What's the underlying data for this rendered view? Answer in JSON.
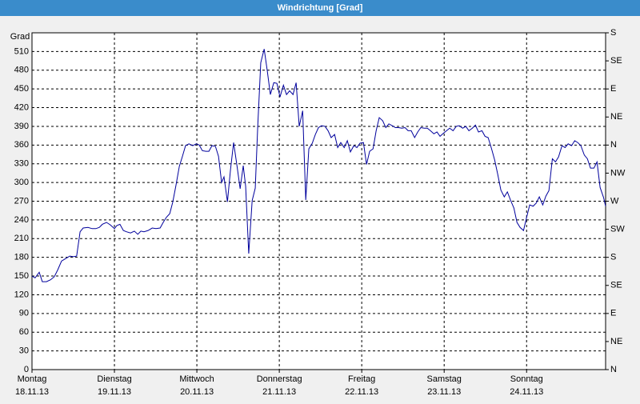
{
  "chart_data": {
    "type": "line",
    "title": "Windrichtung [Grad]",
    "y_label": "Grad",
    "xlim": [
      0,
      167
    ],
    "xticks": [
      {
        "value": 0,
        "label": "Montag"
      },
      {
        "value": 24,
        "label": "Dienstag"
      },
      {
        "value": 48,
        "label": "Mittwoch"
      },
      {
        "value": 72,
        "label": "Donnerstag"
      },
      {
        "value": 96,
        "label": "Freitag"
      },
      {
        "value": 120,
        "label": "Samstag"
      },
      {
        "value": 144,
        "label": "Sonntag"
      }
    ],
    "xtick_dates": [
      "18.11.13",
      "19.11.13",
      "20.11.13",
      "21.11.13",
      "22.11.13",
      "23.11.13",
      "24.11.13"
    ],
    "ylim": [
      0,
      540
    ],
    "yticks": [
      0,
      30,
      60,
      90,
      120,
      150,
      180,
      210,
      240,
      270,
      300,
      330,
      360,
      390,
      420,
      450,
      480,
      510
    ],
    "y2lim": [
      0,
      540
    ],
    "y2ticks": [
      {
        "value": 0,
        "label": "N"
      },
      {
        "value": 45,
        "label": "NE"
      },
      {
        "value": 90,
        "label": "E"
      },
      {
        "value": 135,
        "label": "SE"
      },
      {
        "value": 180,
        "label": "S"
      },
      {
        "value": 225,
        "label": "SW"
      },
      {
        "value": 270,
        "label": "W"
      },
      {
        "value": 315,
        "label": "NW"
      },
      {
        "value": 360,
        "label": "N"
      },
      {
        "value": 405,
        "label": "NE"
      },
      {
        "value": 450,
        "label": "E"
      },
      {
        "value": 495,
        "label": "SE"
      },
      {
        "value": 540,
        "label": "S"
      }
    ],
    "grid": true,
    "x": [
      0,
      0.9,
      2.1,
      3.0,
      4.2,
      5.4,
      6.5,
      7.5,
      8.6,
      9.8,
      11.0,
      12.1,
      13.0,
      14.0,
      14.9,
      16.3,
      17.5,
      18.6,
      19.6,
      20.5,
      21.7,
      22.8,
      24.0,
      24.7,
      25.6,
      26.6,
      27.5,
      28.7,
      29.8,
      30.8,
      31.7,
      32.6,
      33.8,
      35.0,
      36.1,
      37.3,
      38.2,
      39.1,
      40.1,
      41.0,
      41.9,
      42.9,
      43.8,
      44.7,
      45.7,
      46.8,
      47.8,
      48.7,
      49.6,
      50.6,
      51.5,
      52.4,
      53.4,
      54.3,
      55.2,
      55.9,
      56.9,
      57.8,
      58.7,
      59.7,
      60.6,
      61.5,
      62.2,
      63.1,
      64.1,
      65.0,
      65.7,
      66.6,
      67.6,
      68.5,
      69.4,
      70.4,
      71.3,
      72.2,
      73.2,
      74.1,
      75.0,
      76.0,
      76.9,
      77.8,
      78.8,
      79.7,
      80.6,
      81.6,
      82.5,
      83.4,
      84.3,
      85.3,
      86.2,
      87.1,
      88.1,
      89.0,
      89.9,
      90.9,
      91.8,
      92.7,
      93.7,
      94.6,
      95.5,
      96.5,
      97.4,
      98.3,
      99.3,
      100.2,
      101.1,
      102.1,
      103.0,
      103.9,
      104.9,
      105.8,
      106.7,
      107.7,
      108.6,
      109.5,
      110.4,
      111.4,
      112.3,
      113.2,
      114.2,
      115.1,
      116.0,
      117.0,
      117.9,
      118.8,
      119.8,
      120.7,
      121.6,
      122.6,
      123.5,
      124.4,
      125.4,
      126.3,
      127.2,
      128.2,
      129.1,
      130.0,
      131.0,
      131.9,
      132.8,
      133.8,
      134.7,
      135.6,
      136.5,
      137.5,
      138.4,
      139.3,
      140.3,
      141.2,
      142.1,
      143.1,
      144.0,
      144.9,
      145.9,
      146.8,
      147.7,
      148.7,
      149.6,
      150.5,
      151.5,
      152.4,
      153.3,
      154.3,
      155.2,
      156.1,
      157.1,
      158.0,
      158.9,
      159.8,
      160.8,
      161.7,
      162.6,
      163.6,
      164.5,
      165.4,
      166.4,
      167.0
    ],
    "series": [
      {
        "name": "Windrichtung",
        "color": "#00009c",
        "values": [
          150,
          147,
          156,
          141,
          141,
          144,
          149,
          160,
          174,
          178,
          182,
          181,
          182,
          221,
          227,
          228,
          226,
          226,
          228,
          233,
          236,
          232,
          226,
          231,
          233,
          223,
          221,
          219,
          222,
          217,
          222,
          221,
          223,
          227,
          226,
          227,
          236,
          244,
          250,
          269,
          295,
          326,
          342,
          359,
          362,
          359,
          362,
          360,
          351,
          350,
          350,
          359,
          358,
          342,
          300,
          309,
          269,
          321,
          364,
          326,
          290,
          327,
          294,
          186,
          271,
          291,
          387,
          492,
          514,
          479,
          441,
          460,
          459,
          437,
          456,
          441,
          447,
          441,
          460,
          390,
          415,
          272,
          354,
          363,
          377,
          388,
          391,
          390,
          383,
          372,
          377,
          356,
          364,
          356,
          367,
          349,
          359,
          356,
          363,
          364,
          329,
          350,
          354,
          383,
          404,
          399,
          388,
          394,
          391,
          388,
          388,
          387,
          388,
          383,
          383,
          372,
          381,
          388,
          387,
          387,
          383,
          378,
          381,
          374,
          379,
          383,
          387,
          383,
          390,
          391,
          387,
          390,
          383,
          387,
          392,
          381,
          383,
          374,
          372,
          354,
          336,
          313,
          288,
          277,
          285,
          272,
          259,
          236,
          228,
          223,
          244,
          264,
          262,
          267,
          277,
          264,
          278,
          287,
          338,
          333,
          341,
          359,
          356,
          362,
          359,
          367,
          364,
          359,
          344,
          338,
          323,
          323,
          333,
          292,
          276,
          262
        ]
      }
    ]
  }
}
